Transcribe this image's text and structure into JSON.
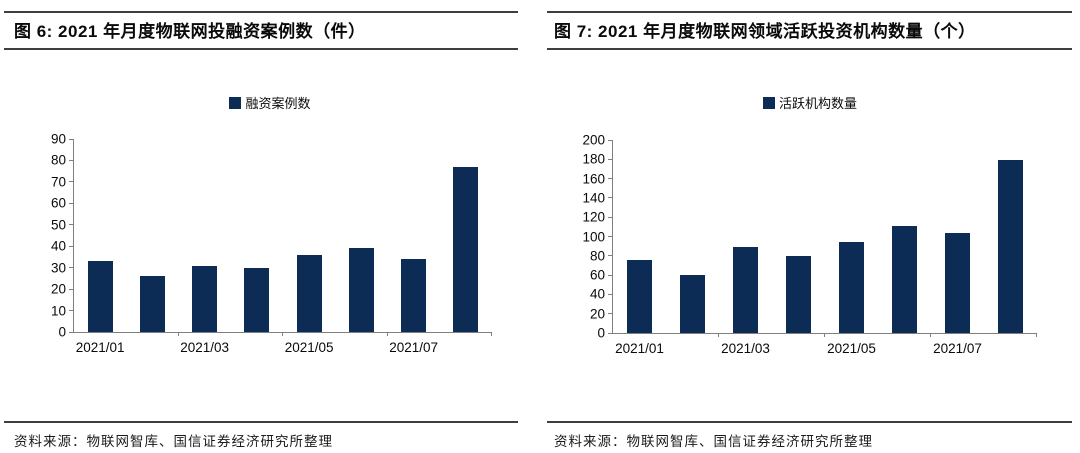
{
  "colors": {
    "bar": "#0d2c55",
    "axis": "#7f7f7f",
    "rule": "#3f3f3f",
    "text": "#0a0a0a"
  },
  "chart_data": [
    {
      "type": "bar",
      "title": "图 6: 2021 年月度物联网投融资案例数（件）",
      "legend": "融资案例数",
      "legend_position": "top-center",
      "categories": [
        "2021/01",
        "2021/02",
        "2021/03",
        "2021/04",
        "2021/05",
        "2021/06",
        "2021/07",
        "2021/08"
      ],
      "values": [
        33,
        26,
        31,
        30,
        36,
        39,
        34,
        77
      ],
      "ylim": [
        0,
        90
      ],
      "ytick_step": 10,
      "ytick_labels": [
        "0",
        "10",
        "20",
        "30",
        "40",
        "50",
        "60",
        "70",
        "80",
        "90"
      ],
      "xtick_indices": [
        0,
        2,
        4,
        6
      ],
      "xtick_labels": [
        "2021/01",
        "2021/03",
        "2021/05",
        "2021/07"
      ],
      "grid": false,
      "bar_color": "#0d2c55",
      "source": "资料来源：物联网智库、国信证券经济研究所整理"
    },
    {
      "type": "bar",
      "title": "图 7: 2021 年月度物联网领域活跃投资机构数量（个）",
      "legend": "活跃机构数量",
      "legend_position": "top-center",
      "categories": [
        "2021/01",
        "2021/02",
        "2021/03",
        "2021/04",
        "2021/05",
        "2021/06",
        "2021/07",
        "2021/08"
      ],
      "values": [
        76,
        60,
        89,
        80,
        94,
        111,
        104,
        179
      ],
      "ylim": [
        0,
        200
      ],
      "ytick_step": 20,
      "ytick_labels": [
        "0",
        "20",
        "40",
        "60",
        "80",
        "100",
        "120",
        "140",
        "160",
        "180",
        "200"
      ],
      "xtick_indices": [
        0,
        2,
        4,
        6
      ],
      "xtick_labels": [
        "2021/01",
        "2021/03",
        "2021/05",
        "2021/07"
      ],
      "grid": false,
      "bar_color": "#0d2c55",
      "source": "资料来源：物联网智库、国信证券经济研究所整理"
    }
  ]
}
